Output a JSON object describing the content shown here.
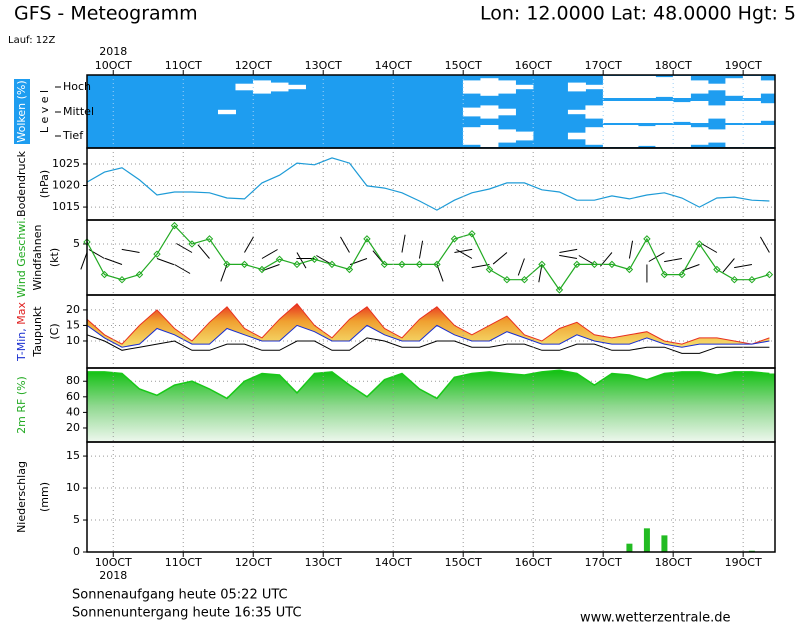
{
  "header": {
    "title": "GFS - Meteogramm",
    "location": "Lon: 12.0000 Lat: 48.0000 Hgt: 5",
    "run": "Lauf: 12Z"
  },
  "chart_data": {
    "type": "meteogram",
    "year": "2018",
    "x": [
      9.625,
      9.875,
      10.125,
      10.375,
      10.625,
      10.875,
      11.125,
      11.375,
      11.625,
      11.875,
      12.125,
      12.375,
      12.625,
      12.875,
      13.125,
      13.375,
      13.625,
      13.875,
      14.125,
      14.375,
      14.625,
      14.875,
      15.125,
      15.375,
      15.625,
      15.875,
      16.125,
      16.375,
      16.625,
      16.875,
      17.125,
      17.375,
      17.625,
      17.875,
      18.125,
      18.375,
      18.625,
      18.875,
      19.125,
      19.375
    ],
    "xlim": [
      9.625,
      19.455
    ],
    "xticks": [
      {
        "value": 10,
        "label": "10OCT"
      },
      {
        "value": 11,
        "label": "11OCT"
      },
      {
        "value": 12,
        "label": "12OCT"
      },
      {
        "value": 13,
        "label": "13OCT"
      },
      {
        "value": 14,
        "label": "14OCT"
      },
      {
        "value": 15,
        "label": "15OCT"
      },
      {
        "value": 16,
        "label": "16OCT"
      },
      {
        "value": 17,
        "label": "17OCT"
      },
      {
        "value": 18,
        "label": "18OCT"
      },
      {
        "value": 19,
        "label": "19OCT"
      }
    ],
    "grid": true,
    "panels": [
      {
        "type": "cloud",
        "y_label": [
          [
            {
              "text": "Wolken (%)",
              "color": "#ffffff"
            }
          ],
          [
            {
              "text": "L e v e l",
              "color": "#000000"
            }
          ]
        ],
        "background": "#1e9df0",
        "color": "#ffffff",
        "series": [
          {
            "name": "Hoch",
            "values": [
              0,
              0,
              0,
              0,
              0,
              0,
              0,
              0,
              0,
              30,
              60,
              40,
              20,
              0,
              0,
              0,
              0,
              0,
              0,
              0,
              0,
              0,
              60,
              80,
              60,
              20,
              0,
              0,
              40,
              20,
              100,
              100,
              100,
              90,
              100,
              60,
              30,
              80,
              100,
              60
            ]
          },
          {
            "name": "Mittel",
            "values": [
              0,
              0,
              0,
              0,
              0,
              0,
              0,
              0,
              20,
              0,
              0,
              0,
              0,
              0,
              0,
              0,
              0,
              0,
              0,
              0,
              0,
              0,
              40,
              60,
              30,
              0,
              0,
              0,
              20,
              60,
              100,
              100,
              100,
              100,
              90,
              100,
              60,
              100,
              100,
              80
            ]
          },
          {
            "name": "Tief",
            "values": [
              0,
              0,
              0,
              0,
              0,
              0,
              0,
              0,
              0,
              0,
              0,
              0,
              0,
              0,
              0,
              0,
              0,
              0,
              0,
              0,
              0,
              0,
              80,
              100,
              60,
              40,
              0,
              0,
              30,
              80,
              100,
              100,
              90,
              100,
              100,
              80,
              60,
              100,
              100,
              100
            ]
          }
        ]
      },
      {
        "type": "line",
        "y_label": [
          [
            {
              "text": "Bodendruck",
              "color": "#000000"
            }
          ],
          [
            {
              "text": "(hPa)",
              "color": "#000000"
            }
          ]
        ],
        "ylim": [
          1012,
          1028.7
        ],
        "yticks": [
          1015,
          1020,
          1025
        ],
        "series": [
          {
            "color": "#1e9bd7",
            "values": [
              1020.8,
              1023.1,
              1024.1,
              1021.3,
              1017.8,
              1018.5,
              1018.5,
              1018.3,
              1017.1,
              1016.9,
              1020.6,
              1022.4,
              1025.2,
              1024.8,
              1026.4,
              1025.2,
              1019.9,
              1019.4,
              1018.3,
              1016.4,
              1014.3,
              1016.6,
              1018.3,
              1019.2,
              1020.6,
              1020.6,
              1019.0,
              1018.5,
              1016.6,
              1016.6,
              1017.6,
              1016.9,
              1017.8,
              1018.3,
              1017.1,
              1015.0,
              1017.1,
              1017.3,
              1016.6,
              1016.4
            ]
          }
        ]
      },
      {
        "type": "wind",
        "y_label": [
          [
            {
              "text": "Wind Geschwi.",
              "color": "#22aa22"
            }
          ],
          [
            {
              "text": "Windfahnen",
              "color": "#000000"
            }
          ],
          [
            {
              "text": "(kt)",
              "color": "#000000"
            }
          ]
        ],
        "ylim": [
          0,
          7.35
        ],
        "yticks": [
          5
        ],
        "series": [
          {
            "color": "#22aa22",
            "values": [
              5.2,
              2,
              1.5,
              2,
              4,
              6.8,
              5,
              5.5,
              3,
              3,
              2.5,
              3.5,
              3,
              3.5,
              3,
              2.5,
              5.5,
              3,
              3,
              3,
              3,
              5.5,
              6,
              2.5,
              1.5,
              1.5,
              3,
              0.5,
              3,
              3,
              3,
              2.5,
              5.5,
              2,
              2,
              5,
              2.5,
              1.5,
              1.5,
              2
            ]
          }
        ],
        "direction": [
          200,
          300,
          290,
          280,
          110,
          120,
          300,
          320,
          200,
          30,
          60,
          250,
          150,
          270,
          300,
          330,
          250,
          320,
          10,
          10,
          160,
          80,
          300,
          260,
          230,
          200,
          190,
          80,
          280,
          300,
          220,
          10,
          180,
          240,
          260,
          250,
          300,
          220,
          260,
          330
        ]
      },
      {
        "type": "temperature",
        "y_label": [
          [
            {
              "text": "T-Min,",
              "color": "#1a2fd0"
            },
            {
              "text": " Max",
              "color": "#e02020"
            }
          ],
          [
            {
              "text": "Taupunkt",
              "color": "#000000"
            }
          ],
          [
            {
              "text": "(C)",
              "color": "#000000"
            }
          ]
        ],
        "ylim": [
          1.3,
          24.8
        ],
        "yticks": [
          10,
          15,
          20
        ],
        "series": [
          {
            "color": "#e83020",
            "values": [
              17,
              12,
              9,
              15,
              20,
              14,
              10,
              16,
              21,
              14,
              11,
              17,
              22,
              15,
              11,
              17,
              21,
              14,
              11,
              17,
              21,
              15,
              12,
              15,
              18,
              12,
              10,
              14,
              16,
              12,
              11,
              12,
              13,
              10,
              9,
              11,
              11,
              10,
              9,
              11
            ]
          },
          {
            "color": "#1a2fd0",
            "values": [
              15,
              11,
              8,
              9,
              14,
              12,
              9,
              9,
              14,
              12,
              10,
              10,
              15,
              13,
              10,
              10,
              15,
              12,
              10,
              10,
              15,
              12,
              10,
              10,
              13,
              11,
              9,
              9,
              12,
              10,
              9,
              9,
              11,
              9,
              8,
              9,
              9,
              9,
              9,
              10
            ]
          },
          {
            "color": "#000000",
            "values": [
              12,
              10,
              7,
              8,
              9,
              10,
              7,
              7,
              9,
              9,
              7,
              7,
              10,
              10,
              7,
              7,
              11,
              10,
              8,
              8,
              10,
              10,
              8,
              8,
              9,
              9,
              7,
              7,
              9,
              9,
              7,
              7,
              8,
              8,
              6,
              6,
              8,
              8,
              8,
              8
            ]
          }
        ]
      },
      {
        "type": "area",
        "y_label": [
          [
            {
              "text": "2m RF (%)",
              "color": "#22aa22"
            }
          ]
        ],
        "ylim": [
          2,
          97
        ],
        "yticks": [
          20,
          40,
          60,
          80
        ],
        "series": [
          {
            "color": "#18c818",
            "values": [
              92,
              92,
              90,
              70,
              62,
              75,
              80,
              70,
              58,
              80,
              90,
              88,
              65,
              90,
              92,
              75,
              60,
              82,
              90,
              70,
              58,
              85,
              90,
              92,
              90,
              88,
              92,
              94,
              90,
              75,
              90,
              88,
              82,
              90,
              92,
              92,
              88,
              92,
              92,
              90
            ]
          }
        ]
      },
      {
        "type": "bar",
        "y_label": [
          [
            {
              "text": "Niederschlag",
              "color": "#000000"
            }
          ],
          [
            {
              "text": "(mm)",
              "color": "#000000"
            }
          ]
        ],
        "ylim": [
          0,
          17.2
        ],
        "yticks": [
          0,
          5,
          10,
          15
        ],
        "series": [
          {
            "color": "#22bb22",
            "values": [
              0,
              0,
              0,
              0,
              0,
              0,
              0,
              0,
              0,
              0,
              0,
              0,
              0,
              0,
              0,
              0,
              0,
              0,
              0,
              0,
              0,
              0,
              0.1,
              0,
              0,
              0,
              0,
              0,
              0,
              0,
              0,
              1.3,
              3.7,
              2.6,
              0,
              0,
              0,
              0,
              0.2,
              0
            ]
          }
        ]
      }
    ]
  },
  "footer": {
    "sunrise": "Sonnenaufgang heute 05:22 UTC",
    "sunset": "Sonnenuntergang heute 16:35 UTC",
    "source": "www.wetterzentrale.de"
  }
}
